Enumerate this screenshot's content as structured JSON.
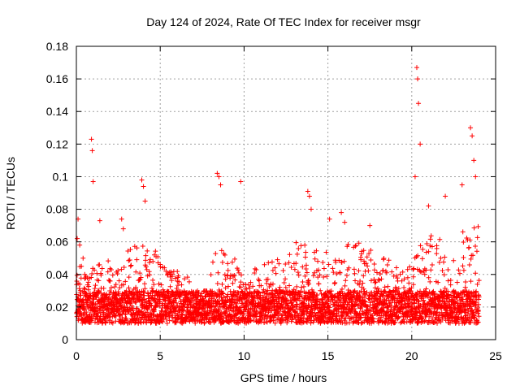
{
  "chart_data": {
    "type": "scatter",
    "title": "Day 124 of 2024, Rate Of TEC Index for receiver msgr",
    "xlabel": "GPS time / hours",
    "ylabel": "ROTI / TECUs",
    "xlim": [
      0,
      25
    ],
    "ylim": [
      0,
      0.18
    ],
    "xticks": [
      0,
      5,
      10,
      15,
      20,
      25
    ],
    "yticks": [
      0,
      0.02,
      0.04,
      0.06,
      0.08,
      0.1,
      0.12,
      0.14,
      0.16,
      0.18
    ],
    "xtick_labels": [
      "0",
      "5",
      "10",
      "15",
      "20",
      "25"
    ],
    "ytick_labels": [
      "0",
      "0.02",
      "0.04",
      "0.06",
      "0.08",
      "0.1",
      "0.12",
      "0.14",
      "0.16",
      "0.18"
    ],
    "grid": true,
    "marker": "plus",
    "color": "#ff0000",
    "series": [
      {
        "name": "ROTI",
        "x": [
          0.05,
          0.1,
          0.2,
          0.3,
          0.4,
          0.5,
          0.9,
          0.95,
          1.0,
          1.4,
          2.7,
          2.8,
          3.9,
          4.0,
          4.1,
          8.4,
          8.5,
          8.6,
          9.8,
          13.8,
          13.9,
          14.0,
          15.1,
          15.8,
          16.0,
          17.5,
          20.2,
          20.3,
          20.35,
          20.4,
          20.5,
          21.0,
          22.0,
          23.0,
          23.5,
          23.6,
          23.7,
          23.8
        ],
        "y": [
          0.062,
          0.074,
          0.058,
          0.045,
          0.05,
          0.04,
          0.123,
          0.116,
          0.097,
          0.073,
          0.074,
          0.068,
          0.098,
          0.094,
          0.085,
          0.102,
          0.1,
          0.095,
          0.097,
          0.091,
          0.088,
          0.08,
          0.074,
          0.078,
          0.072,
          0.07,
          0.1,
          0.167,
          0.16,
          0.145,
          0.12,
          0.082,
          0.088,
          0.095,
          0.13,
          0.125,
          0.11,
          0.1
        ]
      }
    ],
    "density": {
      "x_start": 0,
      "x_end": 24,
      "base_low": 0.01,
      "base_high": 0.03,
      "hourly_peak": [
        0.045,
        0.05,
        0.045,
        0.06,
        0.055,
        0.045,
        0.04,
        0.03,
        0.055,
        0.05,
        0.045,
        0.05,
        0.055,
        0.06,
        0.055,
        0.05,
        0.06,
        0.055,
        0.05,
        0.045,
        0.06,
        0.065,
        0.05,
        0.07
      ]
    }
  }
}
